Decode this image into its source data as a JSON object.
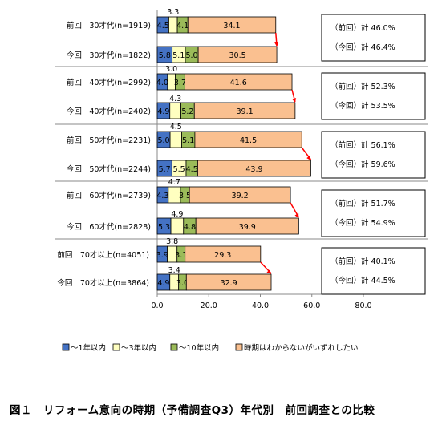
{
  "chart_data": {
    "type": "bar",
    "stacked": true,
    "orientation": "horizontal",
    "title": "",
    "xlabel": "",
    "ylabel": "",
    "xlim": [
      0,
      80
    ],
    "x_ticks": [
      "0.0",
      "20.0",
      "40.0",
      "60.0",
      "80.0"
    ],
    "grid": false,
    "legend_position": "bottom",
    "series": [
      {
        "name": "～1年以内",
        "color": "#4472c4"
      },
      {
        "name": "～3年以内",
        "color": "#ffffc0"
      },
      {
        "name": "～10年以内",
        "color": "#9bbb59"
      },
      {
        "name": "時期はわからないがいずれしたい",
        "color": "#fac090"
      }
    ],
    "rows": [
      {
        "label": "前回　30才代(n=1919)",
        "values": [
          4.5,
          3.3,
          4.1,
          34.1
        ],
        "labels": [
          "4.5",
          "3.3",
          "4.1",
          "34.1"
        ]
      },
      {
        "label": "今回　30才代(n=1822)",
        "values": [
          5.8,
          5.1,
          5.0,
          30.5
        ],
        "labels": [
          "5.8",
          "5.1",
          "5.0",
          "30.5"
        ]
      },
      {
        "label": "前回　40才代(n=2992)",
        "values": [
          4.0,
          3.0,
          3.7,
          41.6
        ],
        "labels": [
          "4.0",
          "3.0",
          "3.7",
          "41.6"
        ]
      },
      {
        "label": "今回　40才代(n=2402)",
        "values": [
          4.9,
          4.3,
          5.2,
          39.1
        ],
        "labels": [
          "4.9",
          "4.3",
          "5.2",
          "39.1"
        ]
      },
      {
        "label": "前回　50才代(n=2231)",
        "values": [
          5.0,
          4.5,
          5.1,
          41.5
        ],
        "labels": [
          "5.0",
          "4.5",
          "5.1",
          "41.5"
        ]
      },
      {
        "label": "今回　50才代(n=2244)",
        "values": [
          5.7,
          5.5,
          4.5,
          43.9
        ],
        "labels": [
          "5.7",
          "5.5",
          "4.5",
          "43.9"
        ]
      },
      {
        "label": "前回　60才代(n=2739)",
        "values": [
          4.3,
          4.7,
          3.5,
          39.2
        ],
        "labels": [
          "4.3",
          "4.7",
          "3.5",
          "39.2"
        ]
      },
      {
        "label": "今回　60才代(n=2828)",
        "values": [
          5.3,
          4.9,
          4.8,
          39.9
        ],
        "labels": [
          "5.3",
          "4.9",
          "4.8",
          "39.9"
        ]
      },
      {
        "label": "前回　70才以上(n=4051)",
        "values": [
          3.9,
          3.8,
          3.1,
          29.3
        ],
        "labels": [
          "3.9",
          "3.8",
          "3.1",
          "29.3"
        ]
      },
      {
        "label": "今回　70才以上(n=3864)",
        "values": [
          4.9,
          3.4,
          3.0,
          32.9
        ],
        "labels": [
          "4.9",
          "3.4",
          "3.0",
          "32.9"
        ]
      }
    ],
    "totals": [
      {
        "prev": "（前回）計 46.0%",
        "curr": "（今回）計 46.4%"
      },
      {
        "prev": "（前回）計 52.3%",
        "curr": "（今回）計 53.5%"
      },
      {
        "prev": "（前回）計 56.1%",
        "curr": "（今回）計 59.6%"
      },
      {
        "prev": "（前回）計 51.7%",
        "curr": "（今回）計 54.9%"
      },
      {
        "prev": "（前回）計 40.1%",
        "curr": "（今回）計 44.5%"
      }
    ],
    "arrow_color": "#ff0000"
  },
  "caption": "図１　リフォーム意向の時期（予備調査Q3）年代別　前回調査との比較"
}
